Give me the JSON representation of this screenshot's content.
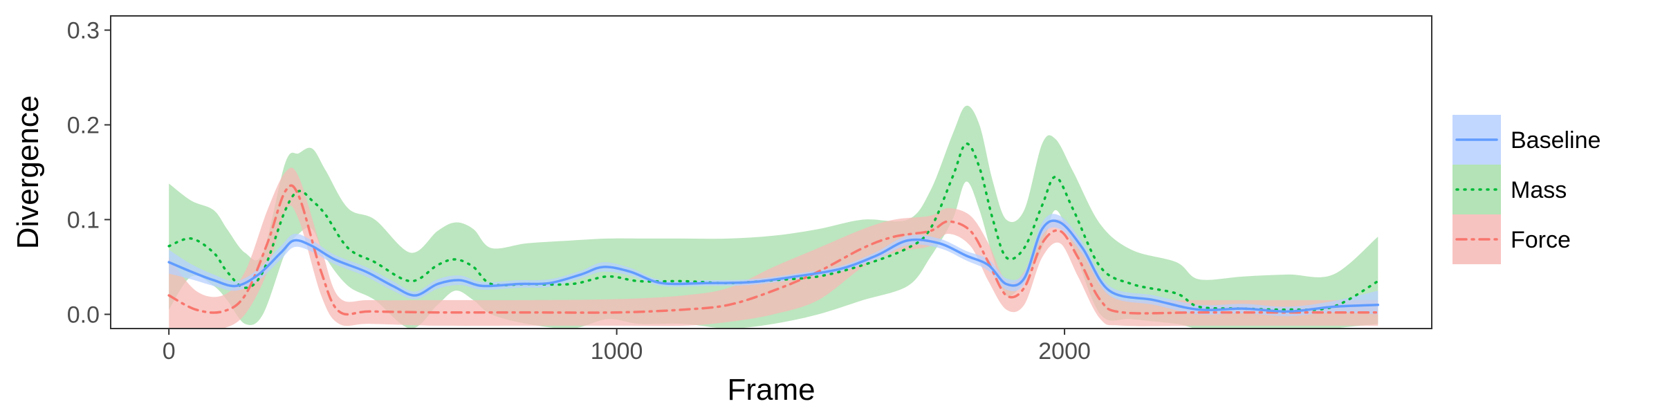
{
  "chart_data": {
    "type": "line",
    "title": "",
    "xlabel": "Frame",
    "ylabel": "Divergence",
    "xlim": [
      -130,
      2820
    ],
    "ylim": [
      -0.015,
      0.315
    ],
    "x_ticks": [
      0,
      1000,
      2000
    ],
    "y_ticks": [
      0.0,
      0.1,
      0.2,
      0.3
    ],
    "x_tick_labels": [
      "0",
      "1000",
      "2000"
    ],
    "y_tick_labels": [
      "0.0",
      "0.1",
      "0.2",
      "0.3"
    ],
    "grid": false,
    "legend_position": "right",
    "series": [
      {
        "name": "Baseline",
        "color": "#619CFF",
        "fill": "#b7d0ff",
        "linestyle": "solid",
        "points": [
          [
            0,
            0.055,
            0.043,
            0.068
          ],
          [
            50,
            0.045,
            0.037,
            0.053
          ],
          [
            100,
            0.036,
            0.03,
            0.042
          ],
          [
            150,
            0.03,
            0.025,
            0.035
          ],
          [
            200,
            0.042,
            0.036,
            0.048
          ],
          [
            250,
            0.065,
            0.058,
            0.072
          ],
          [
            280,
            0.078,
            0.071,
            0.085
          ],
          [
            320,
            0.072,
            0.066,
            0.078
          ],
          [
            370,
            0.058,
            0.053,
            0.063
          ],
          [
            440,
            0.045,
            0.04,
            0.05
          ],
          [
            500,
            0.03,
            0.025,
            0.035
          ],
          [
            550,
            0.02,
            0.016,
            0.024
          ],
          [
            600,
            0.032,
            0.027,
            0.037
          ],
          [
            650,
            0.036,
            0.031,
            0.041
          ],
          [
            700,
            0.03,
            0.026,
            0.034
          ],
          [
            780,
            0.032,
            0.028,
            0.036
          ],
          [
            850,
            0.033,
            0.029,
            0.037
          ],
          [
            920,
            0.042,
            0.038,
            0.046
          ],
          [
            970,
            0.05,
            0.045,
            0.055
          ],
          [
            1030,
            0.045,
            0.041,
            0.049
          ],
          [
            1100,
            0.033,
            0.03,
            0.036
          ],
          [
            1200,
            0.033,
            0.03,
            0.036
          ],
          [
            1300,
            0.034,
            0.031,
            0.037
          ],
          [
            1400,
            0.04,
            0.037,
            0.043
          ],
          [
            1500,
            0.048,
            0.045,
            0.051
          ],
          [
            1580,
            0.062,
            0.058,
            0.066
          ],
          [
            1650,
            0.078,
            0.073,
            0.083
          ],
          [
            1720,
            0.075,
            0.07,
            0.08
          ],
          [
            1780,
            0.062,
            0.057,
            0.067
          ],
          [
            1830,
            0.052,
            0.046,
            0.058
          ],
          [
            1870,
            0.032,
            0.026,
            0.038
          ],
          [
            1910,
            0.038,
            0.032,
            0.044
          ],
          [
            1950,
            0.09,
            0.083,
            0.097
          ],
          [
            1990,
            0.097,
            0.09,
            0.104
          ],
          [
            2040,
            0.07,
            0.064,
            0.076
          ],
          [
            2100,
            0.025,
            0.02,
            0.03
          ],
          [
            2200,
            0.015,
            0.01,
            0.02
          ],
          [
            2300,
            0.005,
            0.0,
            0.01
          ],
          [
            2400,
            0.006,
            0.001,
            0.011
          ],
          [
            2500,
            0.003,
            -0.002,
            0.008
          ],
          [
            2600,
            0.008,
            0.002,
            0.014
          ],
          [
            2700,
            0.01,
            0.0,
            0.025
          ]
        ]
      },
      {
        "name": "Mass",
        "color": "#00BA38",
        "fill": "#a6dea9",
        "linestyle": "dotted",
        "points": [
          [
            0,
            0.072,
            0.005,
            0.138
          ],
          [
            50,
            0.08,
            0.04,
            0.12
          ],
          [
            100,
            0.065,
            0.03,
            0.11
          ],
          [
            130,
            0.045,
            0.015,
            0.09
          ],
          [
            170,
            0.028,
            -0.01,
            0.065
          ],
          [
            210,
            0.045,
            0.0,
            0.065
          ],
          [
            260,
            0.11,
            0.065,
            0.16
          ],
          [
            290,
            0.13,
            0.085,
            0.17
          ],
          [
            320,
            0.12,
            0.09,
            0.175
          ],
          [
            350,
            0.105,
            0.06,
            0.152
          ],
          [
            400,
            0.07,
            0.03,
            0.112
          ],
          [
            460,
            0.055,
            0.015,
            0.1
          ],
          [
            540,
            0.035,
            -0.015,
            0.065
          ],
          [
            600,
            0.052,
            0.01,
            0.088
          ],
          [
            640,
            0.058,
            0.025,
            0.097
          ],
          [
            680,
            0.05,
            0.015,
            0.09
          ],
          [
            720,
            0.032,
            0.0,
            0.07
          ],
          [
            800,
            0.032,
            -0.01,
            0.075
          ],
          [
            900,
            0.032,
            -0.015,
            0.078
          ],
          [
            980,
            0.04,
            -0.005,
            0.08
          ],
          [
            1050,
            0.035,
            -0.01,
            0.08
          ],
          [
            1150,
            0.035,
            -0.01,
            0.08
          ],
          [
            1250,
            0.033,
            -0.015,
            0.08
          ],
          [
            1350,
            0.036,
            -0.01,
            0.083
          ],
          [
            1450,
            0.04,
            0.0,
            0.09
          ],
          [
            1550,
            0.052,
            0.015,
            0.1
          ],
          [
            1650,
            0.07,
            0.03,
            0.1
          ],
          [
            1700,
            0.09,
            0.06,
            0.13
          ],
          [
            1750,
            0.145,
            0.1,
            0.19
          ],
          [
            1780,
            0.18,
            0.14,
            0.22
          ],
          [
            1810,
            0.155,
            0.11,
            0.2
          ],
          [
            1840,
            0.1,
            0.06,
            0.14
          ],
          [
            1870,
            0.06,
            0.02,
            0.1
          ],
          [
            1910,
            0.07,
            0.035,
            0.11
          ],
          [
            1950,
            0.115,
            0.07,
            0.18
          ],
          [
            1980,
            0.145,
            0.11,
            0.185
          ],
          [
            2020,
            0.11,
            0.07,
            0.15
          ],
          [
            2080,
            0.05,
            0.0,
            0.095
          ],
          [
            2150,
            0.032,
            -0.005,
            0.068
          ],
          [
            2250,
            0.022,
            -0.01,
            0.055
          ],
          [
            2300,
            0.008,
            -0.015,
            0.037
          ],
          [
            2400,
            0.006,
            -0.015,
            0.04
          ],
          [
            2500,
            0.005,
            -0.02,
            0.042
          ],
          [
            2600,
            0.008,
            -0.015,
            0.042
          ],
          [
            2700,
            0.035,
            -0.01,
            0.082
          ]
        ]
      },
      {
        "name": "Force",
        "color": "#F8766D",
        "fill": "#f6b9b5",
        "linestyle": "dashdot",
        "points": [
          [
            0,
            0.02,
            -0.015,
            0.06
          ],
          [
            60,
            0.005,
            -0.015,
            0.025
          ],
          [
            120,
            0.003,
            -0.015,
            0.02
          ],
          [
            170,
            0.02,
            0.0,
            0.045
          ],
          [
            220,
            0.075,
            0.045,
            0.11
          ],
          [
            260,
            0.13,
            0.11,
            0.15
          ],
          [
            290,
            0.125,
            0.1,
            0.145
          ],
          [
            340,
            0.045,
            0.02,
            0.07
          ],
          [
            380,
            0.003,
            -0.01,
            0.018
          ],
          [
            450,
            0.003,
            -0.01,
            0.015
          ],
          [
            600,
            0.002,
            -0.012,
            0.015
          ],
          [
            800,
            0.002,
            -0.012,
            0.015
          ],
          [
            1000,
            0.002,
            -0.012,
            0.016
          ],
          [
            1150,
            0.005,
            -0.012,
            0.02
          ],
          [
            1250,
            0.01,
            -0.008,
            0.028
          ],
          [
            1350,
            0.025,
            0.0,
            0.05
          ],
          [
            1450,
            0.045,
            0.015,
            0.07
          ],
          [
            1550,
            0.07,
            0.05,
            0.09
          ],
          [
            1620,
            0.082,
            0.065,
            0.1
          ],
          [
            1700,
            0.088,
            0.072,
            0.104
          ],
          [
            1740,
            0.098,
            0.085,
            0.112
          ],
          [
            1790,
            0.088,
            0.072,
            0.104
          ],
          [
            1830,
            0.055,
            0.035,
            0.075
          ],
          [
            1870,
            0.02,
            0.005,
            0.035
          ],
          [
            1910,
            0.028,
            0.01,
            0.045
          ],
          [
            1950,
            0.075,
            0.06,
            0.09
          ],
          [
            1990,
            0.088,
            0.075,
            0.1
          ],
          [
            2030,
            0.06,
            0.04,
            0.08
          ],
          [
            2080,
            0.015,
            -0.005,
            0.035
          ],
          [
            2130,
            0.002,
            -0.012,
            0.016
          ],
          [
            2300,
            0.002,
            -0.012,
            0.015
          ],
          [
            2500,
            0.002,
            -0.012,
            0.015
          ],
          [
            2700,
            0.002,
            -0.012,
            0.015
          ]
        ]
      }
    ]
  }
}
